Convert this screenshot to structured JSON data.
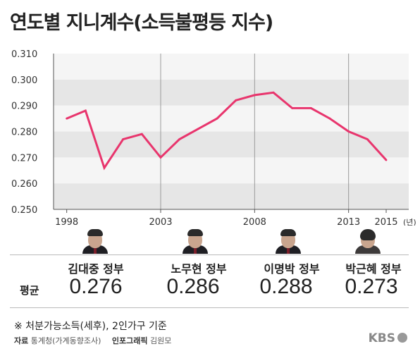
{
  "title": "연도별 지니계수(소득불평등 지수)",
  "chart_data": {
    "type": "line",
    "title": "연도별 지니계수(소득불평등 지수)",
    "x": [
      1998,
      1999,
      2000,
      2001,
      2002,
      2003,
      2004,
      2005,
      2006,
      2007,
      2008,
      2009,
      2010,
      2011,
      2012,
      2013,
      2014,
      2015
    ],
    "series": [
      {
        "values": [
          0.285,
          0.288,
          0.266,
          0.277,
          0.279,
          0.27,
          0.277,
          0.281,
          0.285,
          0.292,
          0.294,
          0.295,
          0.289,
          0.289,
          0.285,
          0.28,
          0.277,
          0.269
        ]
      }
    ],
    "x_tick_labels": [
      "1998",
      "2003",
      "2008",
      "2013",
      "2015"
    ],
    "x_unit": "(년)",
    "y_tick_labels": [
      "0.310",
      "0.300",
      "0.290",
      "0.280",
      "0.270",
      "0.260",
      "0.250"
    ],
    "ylim": [
      0.25,
      0.31
    ],
    "line_color": "#e8356d",
    "band_color": "#e6e6e6",
    "grid": "alternating horizontal bands"
  },
  "governments": [
    {
      "name": "김대중 정부",
      "average": "0.276"
    },
    {
      "name": "노무현 정부",
      "average": "0.286"
    },
    {
      "name": "이명박 정부",
      "average": "0.288"
    },
    {
      "name": "박근혜 정부",
      "average": "0.273"
    }
  ],
  "average_label": "평균",
  "footnote": "※ 처분가능소득(세후), 2인가구 기준",
  "source": {
    "label": "자료",
    "value": "통계청(가계동향조사)",
    "graphic_label": "인포그래픽",
    "graphic_value": "김원모"
  },
  "logo": "KBS"
}
